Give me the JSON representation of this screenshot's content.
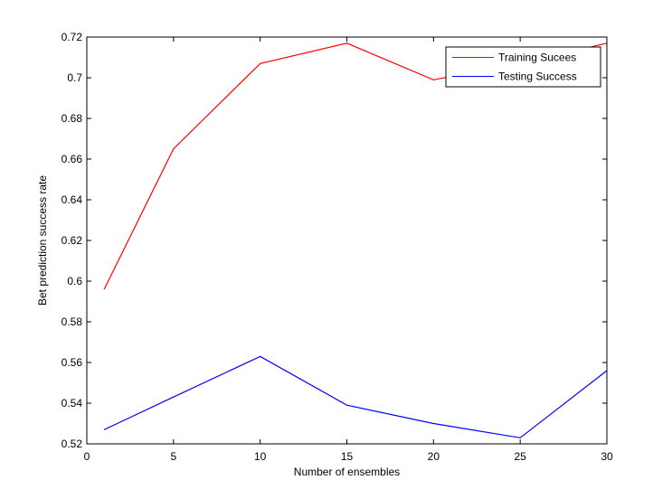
{
  "chart_data": {
    "type": "line",
    "xlabel": "Number of ensembles",
    "ylabel": "Bet prediction success rate",
    "xlim": [
      0,
      30
    ],
    "ylim": [
      0.52,
      0.72
    ],
    "xticks": [
      0,
      5,
      10,
      15,
      20,
      25,
      30
    ],
    "xtick_labels": [
      "0",
      "5",
      "10",
      "15",
      "20",
      "25",
      "30"
    ],
    "yticks": [
      0.52,
      0.54,
      0.56,
      0.58,
      0.6,
      0.62,
      0.64,
      0.66,
      0.68,
      0.7,
      0.72
    ],
    "ytick_labels": [
      "0.52",
      "0.54",
      "0.56",
      "0.58",
      "0.6",
      "0.62",
      "0.64",
      "0.66",
      "0.68",
      "0.7",
      "0.72"
    ],
    "grid": false,
    "legend_position": "top-right",
    "series": [
      {
        "name": "Training Sucees",
        "color": "#ff0000",
        "x": [
          1,
          5,
          10,
          15,
          20,
          25,
          30
        ],
        "y": [
          0.596,
          0.665,
          0.707,
          0.717,
          0.699,
          0.707,
          0.717
        ]
      },
      {
        "name": "Testing Success",
        "color": "#0000ff",
        "x": [
          1,
          5,
          10,
          15,
          20,
          25,
          30
        ],
        "y": [
          0.527,
          0.543,
          0.563,
          0.539,
          0.53,
          0.523,
          0.556
        ]
      }
    ]
  }
}
